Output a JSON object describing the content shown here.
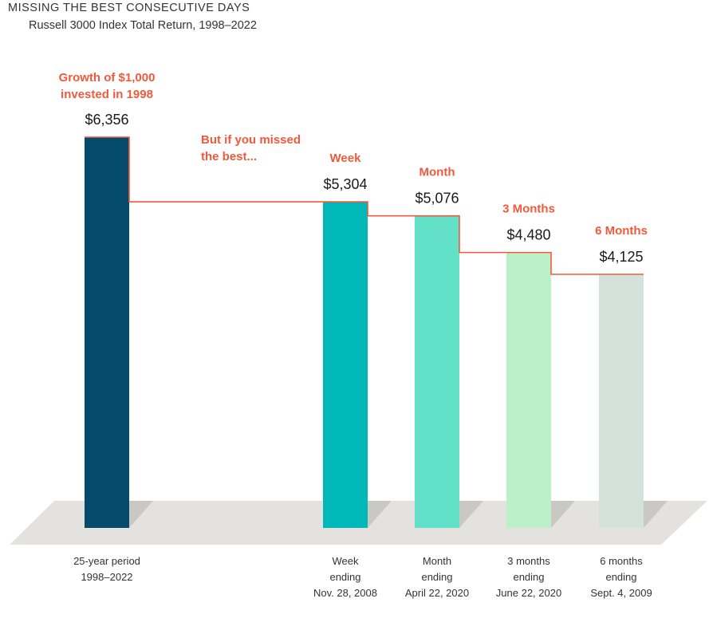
{
  "title": "MISSING THE BEST CONSECUTIVE DAYS",
  "subtitle": "Russell 3000 Index Total Return, 1998–2022",
  "annotation_growth": [
    "Growth of $1,000",
    "invested in 1998"
  ],
  "annotation_missed": [
    "But if you missed",
    "the best..."
  ],
  "chart_data": {
    "type": "bar",
    "categories": [
      [
        "25-year period",
        "1998–2022"
      ],
      [
        "Week",
        "ending",
        "Nov. 28, 2008"
      ],
      [
        "Month",
        "ending",
        "April 22, 2020"
      ],
      [
        "3 months",
        "ending",
        "June 22, 2020"
      ],
      [
        "6 months",
        "ending",
        "Sept. 4, 2009"
      ]
    ],
    "headers": [
      "",
      "Week",
      "Month",
      "3 Months",
      "6 Months"
    ],
    "values": [
      6356,
      5304,
      5076,
      4480,
      4125
    ],
    "value_labels": [
      "$6,356",
      "$5,304",
      "$5,076",
      "$4,480",
      "$4,125"
    ],
    "colors": [
      "#034a6b",
      "#00b8b8",
      "#62e0c8",
      "#bbf0c8",
      "#d3e2db"
    ],
    "step_line_color": "#f05a3c",
    "floor_color": "#e3e2de",
    "grid": false
  }
}
